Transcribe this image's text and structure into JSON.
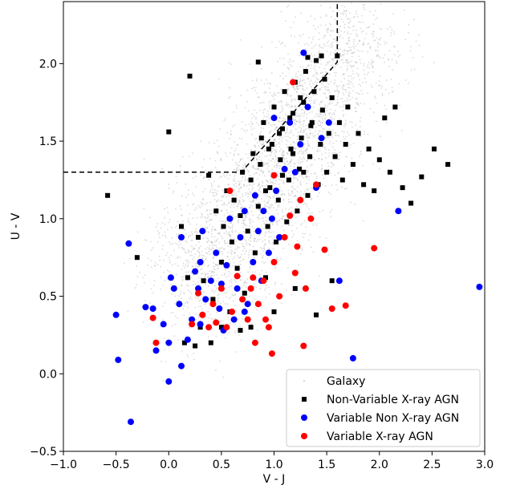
{
  "chart_data": {
    "type": "scatter",
    "xlabel": "V - J",
    "ylabel": "U - V",
    "xlim": [
      -1.0,
      3.0
    ],
    "ylim": [
      -0.5,
      2.4
    ],
    "xticks": [
      "−1.0",
      "−0.5",
      "0.0",
      "0.5",
      "1.0",
      "1.5",
      "2.0",
      "2.5",
      "3.0"
    ],
    "xtick_values": [
      -1.0,
      -0.5,
      0.0,
      0.5,
      1.0,
      1.5,
      2.0,
      2.5,
      3.0
    ],
    "yticks": [
      "−0.5",
      "0.0",
      "0.5",
      "1.0",
      "1.5",
      "2.0"
    ],
    "ytick_values": [
      -0.5,
      0.0,
      0.5,
      1.0,
      1.5,
      2.0
    ],
    "grid": false,
    "legend_position": "lower-right",
    "colors": {
      "galaxy": "#9a9a9a",
      "non_variable": "#000000",
      "variable_non_xray": "#0000ff",
      "variable_xray": "#ff0000"
    },
    "boundary": {
      "style": "dashed",
      "points": [
        [
          -1.0,
          1.3
        ],
        [
          0.69,
          1.3
        ],
        [
          1.6,
          2.01
        ],
        [
          1.6,
          2.4
        ]
      ]
    },
    "galaxy_cloud": {
      "approx_count": 3000,
      "center_points": [
        [
          0.3,
          0.6
        ],
        [
          0.5,
          0.85
        ],
        [
          0.8,
          1.1
        ],
        [
          1.0,
          1.35
        ],
        [
          1.2,
          1.55
        ],
        [
          1.4,
          1.8
        ],
        [
          1.7,
          2.1
        ]
      ]
    },
    "series": [
      {
        "name": "Non-Variable X-ray AGN",
        "marker": "square",
        "color": "#000000",
        "points": [
          [
            -0.58,
            1.15
          ],
          [
            -0.3,
            0.75
          ],
          [
            0.0,
            1.56
          ],
          [
            0.2,
            1.92
          ],
          [
            0.15,
            0.2
          ],
          [
            0.18,
            0.62
          ],
          [
            0.12,
            0.95
          ],
          [
            0.28,
            0.88
          ],
          [
            0.33,
            0.6
          ],
          [
            0.38,
            1.28
          ],
          [
            0.42,
            0.48
          ],
          [
            0.45,
            1.05
          ],
          [
            0.5,
            0.72
          ],
          [
            0.52,
            0.95
          ],
          [
            0.55,
            1.18
          ],
          [
            0.58,
            0.4
          ],
          [
            0.6,
            0.85
          ],
          [
            0.62,
            1.12
          ],
          [
            0.65,
            0.68
          ],
          [
            0.68,
            1.02
          ],
          [
            0.7,
            1.3
          ],
          [
            0.72,
            0.52
          ],
          [
            0.75,
            0.92
          ],
          [
            0.78,
            1.25
          ],
          [
            0.8,
            1.42
          ],
          [
            0.82,
            0.78
          ],
          [
            0.85,
            1.08
          ],
          [
            0.87,
            1.35
          ],
          [
            0.9,
            1.62
          ],
          [
            0.92,
            0.62
          ],
          [
            0.94,
            0.95
          ],
          [
            0.96,
            1.2
          ],
          [
            0.98,
            1.48
          ],
          [
            1.0,
            1.72
          ],
          [
            1.02,
            0.85
          ],
          [
            1.04,
            1.12
          ],
          [
            1.06,
            1.38
          ],
          [
            1.08,
            1.58
          ],
          [
            1.1,
            1.82
          ],
          [
            1.12,
            0.98
          ],
          [
            1.14,
            1.25
          ],
          [
            1.16,
            1.45
          ],
          [
            1.18,
            1.68
          ],
          [
            1.2,
            1.88
          ],
          [
            1.22,
            1.05
          ],
          [
            1.24,
            1.32
          ],
          [
            1.26,
            1.52
          ],
          [
            1.28,
            1.75
          ],
          [
            1.3,
            1.95
          ],
          [
            1.32,
            1.15
          ],
          [
            1.34,
            1.4
          ],
          [
            1.36,
            1.62
          ],
          [
            1.38,
            1.82
          ],
          [
            1.4,
            2.02
          ],
          [
            1.42,
            1.22
          ],
          [
            1.44,
            1.48
          ],
          [
            1.46,
            1.7
          ],
          [
            1.48,
            1.9
          ],
          [
            1.5,
            1.3
          ],
          [
            1.52,
            1.55
          ],
          [
            1.55,
            1.78
          ],
          [
            1.58,
            1.4
          ],
          [
            1.62,
            1.62
          ],
          [
            1.65,
            1.25
          ],
          [
            1.68,
            1.48
          ],
          [
            1.7,
            1.72
          ],
          [
            1.75,
            1.35
          ],
          [
            1.8,
            1.55
          ],
          [
            1.85,
            1.22
          ],
          [
            1.9,
            1.45
          ],
          [
            1.95,
            1.18
          ],
          [
            2.0,
            1.38
          ],
          [
            2.05,
            1.65
          ],
          [
            2.1,
            1.3
          ],
          [
            2.15,
            1.72
          ],
          [
            2.18,
            1.05
          ],
          [
            2.22,
            1.2
          ],
          [
            2.3,
            1.1
          ],
          [
            2.4,
            1.27
          ],
          [
            2.52,
            1.45
          ],
          [
            2.65,
            1.35
          ],
          [
            0.85,
            2.01
          ],
          [
            1.32,
            2.04
          ],
          [
            1.45,
            2.05
          ],
          [
            1.6,
            2.05
          ],
          [
            0.3,
            0.3
          ],
          [
            0.4,
            0.2
          ],
          [
            0.5,
            0.3
          ],
          [
            0.78,
            0.3
          ],
          [
            1.4,
            0.38
          ],
          [
            1.55,
            0.6
          ],
          [
            0.25,
            0.18
          ],
          [
            0.68,
            0.28
          ],
          [
            1.0,
            0.4
          ],
          [
            1.2,
            0.55
          ],
          [
            0.95,
            1.45
          ],
          [
            1.05,
            1.55
          ],
          [
            1.15,
            1.65
          ],
          [
            1.25,
            1.78
          ],
          [
            1.35,
            1.6
          ],
          [
            1.08,
            1.28
          ],
          [
            0.92,
            1.18
          ],
          [
            0.88,
            1.52
          ],
          [
            1.18,
            1.42
          ],
          [
            1.28,
            1.3
          ]
        ]
      },
      {
        "name": "Variable Non X-ray AGN",
        "marker": "circle",
        "color": "#0000ff",
        "points": [
          [
            -0.36,
            -0.31
          ],
          [
            -0.48,
            0.09
          ],
          [
            -0.5,
            0.38
          ],
          [
            -0.38,
            0.84
          ],
          [
            -0.22,
            0.43
          ],
          [
            -0.15,
            0.42
          ],
          [
            -0.12,
            0.15
          ],
          [
            -0.05,
            0.32
          ],
          [
            0.0,
            0.2
          ],
          [
            0.02,
            0.62
          ],
          [
            0.05,
            0.55
          ],
          [
            0.1,
            0.45
          ],
          [
            0.12,
            0.05
          ],
          [
            0.18,
            0.22
          ],
          [
            0.22,
            0.35
          ],
          [
            0.25,
            0.66
          ],
          [
            0.28,
            0.55
          ],
          [
            0.3,
            0.72
          ],
          [
            0.32,
            0.92
          ],
          [
            0.35,
            0.48
          ],
          [
            0.4,
            0.6
          ],
          [
            0.45,
            0.78
          ],
          [
            0.48,
            0.42
          ],
          [
            0.5,
            0.58
          ],
          [
            0.55,
            0.7
          ],
          [
            0.58,
            1.0
          ],
          [
            0.62,
            0.35
          ],
          [
            0.65,
            0.55
          ],
          [
            0.68,
            0.88
          ],
          [
            0.72,
            1.05
          ],
          [
            0.75,
            0.45
          ],
          [
            0.8,
            0.72
          ],
          [
            0.82,
            1.15
          ],
          [
            0.85,
            0.92
          ],
          [
            0.88,
            0.6
          ],
          [
            0.9,
            1.05
          ],
          [
            0.95,
            0.78
          ],
          [
            0.98,
            1.0
          ],
          [
            1.02,
            1.18
          ],
          [
            1.05,
            0.88
          ],
          [
            1.1,
            1.32
          ],
          [
            1.15,
            1.62
          ],
          [
            1.2,
            1.3
          ],
          [
            1.25,
            1.48
          ],
          [
            1.28,
            2.07
          ],
          [
            1.32,
            1.72
          ],
          [
            1.4,
            1.2
          ],
          [
            1.45,
            1.52
          ],
          [
            1.52,
            1.62
          ],
          [
            1.62,
            0.6
          ],
          [
            1.75,
            0.1
          ],
          [
            2.18,
            1.05
          ],
          [
            2.95,
            0.56
          ],
          [
            0.3,
            0.32
          ],
          [
            0.52,
            0.28
          ],
          [
            0.0,
            -0.05
          ],
          [
            0.72,
            0.4
          ],
          [
            1.0,
            1.65
          ],
          [
            0.12,
            0.88
          ]
        ]
      },
      {
        "name": "Variable X-ray AGN",
        "marker": "circle",
        "color": "#ff0000",
        "points": [
          [
            -0.15,
            0.36
          ],
          [
            -0.12,
            0.2
          ],
          [
            0.22,
            0.32
          ],
          [
            0.28,
            0.52
          ],
          [
            0.32,
            0.38
          ],
          [
            0.38,
            0.3
          ],
          [
            0.42,
            0.45
          ],
          [
            0.5,
            0.55
          ],
          [
            0.55,
            0.3
          ],
          [
            0.6,
            0.4
          ],
          [
            0.65,
            0.63
          ],
          [
            0.7,
            0.48
          ],
          [
            0.75,
            0.35
          ],
          [
            0.78,
            0.55
          ],
          [
            0.82,
            0.2
          ],
          [
            0.85,
            0.45
          ],
          [
            0.9,
            0.6
          ],
          [
            0.95,
            0.3
          ],
          [
            0.98,
            0.13
          ],
          [
            1.0,
            0.72
          ],
          [
            1.05,
            0.5
          ],
          [
            1.1,
            0.88
          ],
          [
            1.15,
            1.02
          ],
          [
            1.2,
            0.65
          ],
          [
            1.22,
            0.82
          ],
          [
            1.25,
            1.12
          ],
          [
            1.28,
            0.18
          ],
          [
            1.3,
            0.55
          ],
          [
            1.35,
            1.0
          ],
          [
            1.4,
            1.22
          ],
          [
            1.48,
            0.8
          ],
          [
            1.55,
            0.42
          ],
          [
            1.68,
            0.44
          ],
          [
            1.95,
            0.81
          ],
          [
            1.18,
            1.88
          ],
          [
            0.8,
            0.62
          ],
          [
            1.0,
            1.28
          ],
          [
            0.92,
            0.35
          ],
          [
            0.58,
            1.18
          ],
          [
            0.45,
            0.33
          ]
        ]
      }
    ]
  }
}
